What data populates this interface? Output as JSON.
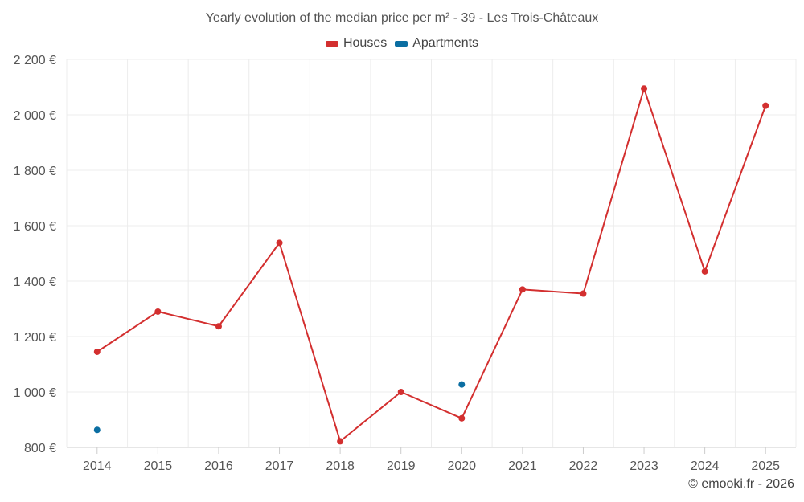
{
  "chart_data": {
    "type": "line",
    "title": "Yearly evolution of the median price per m² - 39 - Les Trois-Châteaux",
    "xlabel": "",
    "ylabel": "",
    "categories": [
      "2014",
      "2015",
      "2016",
      "2017",
      "2018",
      "2019",
      "2020",
      "2021",
      "2022",
      "2023",
      "2024",
      "2025"
    ],
    "y_ticks": [
      "800 €",
      "1 000 €",
      "1 200 €",
      "1 400 €",
      "1 600 €",
      "1 800 €",
      "2 000 €",
      "2 200 €"
    ],
    "y_tick_values": [
      800,
      1000,
      1200,
      1400,
      1600,
      1800,
      2000,
      2200
    ],
    "ylim": [
      800,
      2200
    ],
    "grid": true,
    "legend_position": "top-center",
    "series": [
      {
        "name": "Houses",
        "color": "#d32f2f",
        "style": "line-with-markers",
        "values": [
          1145,
          1290,
          1237,
          1538,
          822,
          1000,
          905,
          1370,
          1355,
          2095,
          1435,
          2033
        ]
      },
      {
        "name": "Apartments",
        "color": "#0b6ea2",
        "style": "markers",
        "values": [
          863,
          null,
          null,
          null,
          null,
          null,
          1027,
          null,
          null,
          null,
          null,
          null
        ]
      }
    ]
  },
  "credit": "© emooki.fr - 2026"
}
